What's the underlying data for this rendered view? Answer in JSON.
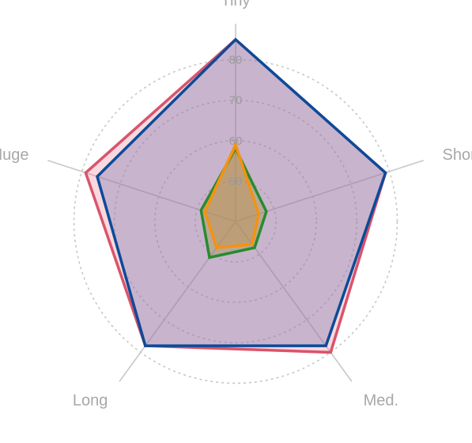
{
  "chart_data": {
    "type": "radar",
    "axes": [
      "Tiny",
      "Short",
      "Med.",
      "Long",
      "Huge"
    ],
    "r_min": 40,
    "r_max": 85,
    "ticks": [
      50,
      60,
      70,
      80
    ],
    "tick_labels": [
      "50",
      "60",
      "70",
      "80"
    ],
    "grid": true,
    "series": [
      {
        "color": "#d9546c",
        "fill": "rgba(233,120,140,0.28)",
        "values": [
          85,
          79,
          80,
          78,
          79
        ]
      },
      {
        "color": "#0d4a99",
        "fill": "rgba(120,120,175,0.38)",
        "values": [
          85,
          79,
          78,
          78,
          76
        ]
      },
      {
        "color": "#2a8a2e",
        "fill": "rgba(150,150,60,0.35)",
        "values": [
          58,
          48,
          48,
          51,
          49
        ]
      },
      {
        "color": "#f5920f",
        "fill": "rgba(200,140,60,0.35)",
        "values": [
          59,
          46,
          47,
          48,
          48
        ]
      }
    ]
  }
}
